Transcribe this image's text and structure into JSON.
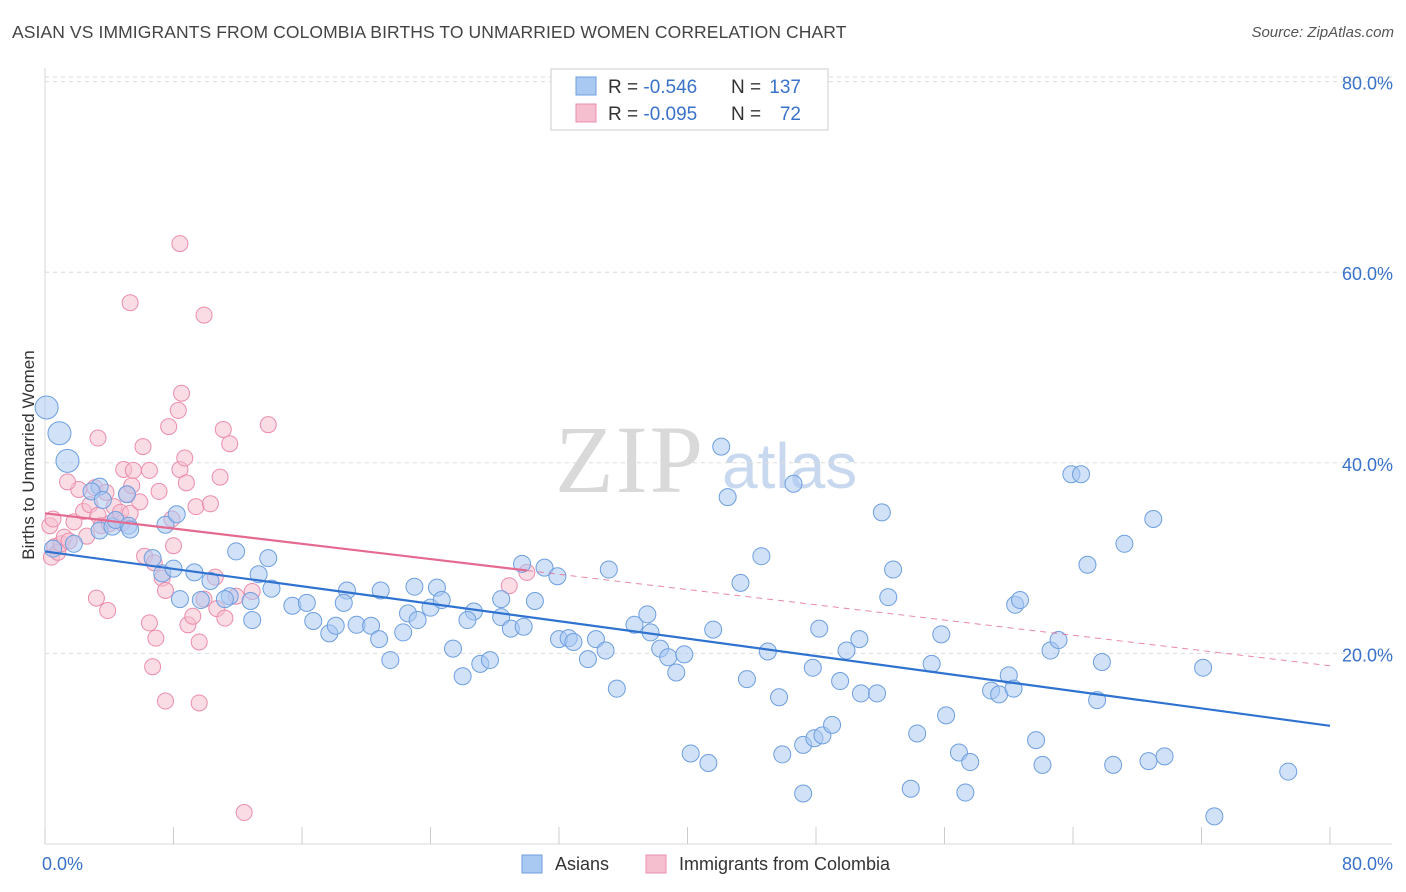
{
  "header": {
    "title": "ASIAN VS IMMIGRANTS FROM COLOMBIA BIRTHS TO UNMARRIED WOMEN CORRELATION CHART",
    "source": "Source: ZipAtlas.com"
  },
  "watermark": {
    "zip": "ZIP",
    "atlas": "atlas"
  },
  "colors": {
    "blue_fill": "#a9c8f2",
    "blue_stroke": "#6e9fdf",
    "blue_line": "#2f72cf",
    "pink_fill": "#f6bfd0",
    "pink_stroke": "#eb8dab",
    "pink_line": "#e46a90",
    "value_text": "#3a72c9",
    "label_text": "#333333",
    "grid": "#dcdcdc"
  },
  "legend_top": {
    "rows": [
      {
        "r_label": "R = ",
        "r_value": "-0.546",
        "n_label": "N = ",
        "n_value": "137",
        "color": "#a9c8f2"
      },
      {
        "r_label": "R = ",
        "r_value": "-0.095",
        "n_label": "N = ",
        "n_value": "72",
        "color": "#f6bfd0"
      }
    ]
  },
  "chart_data": {
    "type": "scatter",
    "title": "ASIAN VS IMMIGRANTS FROM COLOMBIA BIRTHS TO UNMARRIED WOMEN CORRELATION CHART",
    "xlabel": "",
    "ylabel": "Births to Unmarried Women",
    "xlim": [
      0,
      80
    ],
    "ylim": [
      0,
      82
    ],
    "x_tick_labels": [
      "0.0%",
      "80.0%"
    ],
    "y_ticks": [
      20,
      40,
      60,
      80
    ],
    "y_tick_labels": [
      "20.0%",
      "40.0%",
      "60.0%",
      "80.0%"
    ],
    "grid": true,
    "legend_position": "bottom-center",
    "series": [
      {
        "name": "Asians",
        "color": "#a9c8f2",
        "trend": {
          "x": [
            0,
            80
          ],
          "y": [
            30.7,
            12.4
          ]
        },
        "points": [
          [
            0.1,
            45.8
          ],
          [
            0.9,
            43.1
          ],
          [
            1.4,
            40.2
          ],
          [
            3.4,
            37.5
          ],
          [
            2.9,
            37.0
          ],
          [
            3.6,
            36.1
          ],
          [
            5.1,
            36.7
          ],
          [
            7.5,
            33.5
          ],
          [
            3.4,
            32.9
          ],
          [
            4.2,
            33.3
          ],
          [
            4.4,
            34.0
          ],
          [
            5.2,
            33.4
          ],
          [
            8.2,
            34.6
          ],
          [
            11.9,
            30.7
          ],
          [
            5.3,
            33.0
          ],
          [
            6.7,
            30.0
          ],
          [
            7.3,
            28.4
          ],
          [
            8.0,
            28.9
          ],
          [
            9.3,
            28.5
          ],
          [
            13.9,
            30.0
          ],
          [
            11.5,
            26.0
          ],
          [
            13.3,
            28.3
          ],
          [
            10.3,
            27.6
          ],
          [
            14.1,
            26.8
          ],
          [
            9.7,
            25.6
          ],
          [
            11.2,
            25.7
          ],
          [
            8.4,
            25.7
          ],
          [
            12.8,
            25.5
          ],
          [
            15.4,
            25.0
          ],
          [
            16.3,
            25.3
          ],
          [
            16.7,
            23.4
          ],
          [
            18.8,
            26.6
          ],
          [
            12.9,
            23.5
          ],
          [
            17.7,
            22.1
          ],
          [
            18.1,
            22.9
          ],
          [
            18.6,
            25.3
          ],
          [
            19.4,
            23.0
          ],
          [
            20.3,
            22.9
          ],
          [
            20.8,
            21.5
          ],
          [
            20.9,
            26.6
          ],
          [
            21.5,
            19.3
          ],
          [
            22.3,
            22.2
          ],
          [
            22.6,
            24.2
          ],
          [
            23.0,
            27.0
          ],
          [
            23.2,
            23.5
          ],
          [
            24.0,
            24.8
          ],
          [
            24.4,
            26.9
          ],
          [
            24.7,
            25.6
          ],
          [
            25.4,
            20.5
          ],
          [
            26.0,
            17.6
          ],
          [
            26.7,
            24.4
          ],
          [
            26.3,
            23.5
          ],
          [
            27.1,
            18.9
          ],
          [
            27.7,
            19.3
          ],
          [
            28.4,
            25.7
          ],
          [
            28.4,
            23.8
          ],
          [
            29.0,
            22.6
          ],
          [
            29.8,
            22.8
          ],
          [
            29.7,
            29.4
          ],
          [
            30.5,
            25.5
          ],
          [
            31.1,
            29.0
          ],
          [
            32.0,
            21.5
          ],
          [
            32.6,
            21.6
          ],
          [
            31.9,
            28.1
          ],
          [
            32.9,
            21.2
          ],
          [
            33.8,
            19.4
          ],
          [
            34.3,
            21.5
          ],
          [
            34.9,
            20.3
          ],
          [
            35.1,
            28.8
          ],
          [
            35.6,
            16.3
          ],
          [
            36.7,
            23.0
          ],
          [
            37.5,
            24.1
          ],
          [
            38.3,
            20.5
          ],
          [
            37.7,
            22.2
          ],
          [
            38.8,
            19.6
          ],
          [
            39.3,
            18.0
          ],
          [
            39.8,
            19.9
          ],
          [
            40.2,
            9.5
          ],
          [
            41.3,
            8.5
          ],
          [
            42.1,
            41.7
          ],
          [
            41.6,
            22.5
          ],
          [
            43.3,
            27.4
          ],
          [
            43.7,
            17.3
          ],
          [
            42.5,
            36.4
          ],
          [
            44.6,
            30.2
          ],
          [
            45.0,
            20.2
          ],
          [
            46.6,
            37.8
          ],
          [
            45.7,
            15.4
          ],
          [
            45.9,
            9.4
          ],
          [
            47.2,
            10.4
          ],
          [
            47.2,
            5.3
          ],
          [
            47.9,
            11.1
          ],
          [
            48.4,
            11.4
          ],
          [
            47.8,
            18.5
          ],
          [
            48.2,
            22.6
          ],
          [
            49.0,
            12.5
          ],
          [
            49.5,
            17.1
          ],
          [
            50.8,
            15.8
          ],
          [
            49.9,
            20.3
          ],
          [
            50.7,
            21.5
          ],
          [
            51.8,
            15.8
          ],
          [
            52.1,
            34.8
          ],
          [
            52.5,
            25.9
          ],
          [
            52.8,
            28.8
          ],
          [
            53.9,
            5.8
          ],
          [
            54.3,
            11.6
          ],
          [
            55.2,
            18.9
          ],
          [
            55.8,
            22.0
          ],
          [
            56.1,
            13.5
          ],
          [
            56.9,
            9.6
          ],
          [
            57.3,
            5.4
          ],
          [
            57.6,
            8.6
          ],
          [
            58.9,
            16.1
          ],
          [
            59.4,
            15.7
          ],
          [
            60.0,
            17.7
          ],
          [
            60.3,
            16.3
          ],
          [
            60.4,
            25.1
          ],
          [
            60.7,
            25.6
          ],
          [
            61.7,
            10.9
          ],
          [
            62.1,
            8.3
          ],
          [
            62.6,
            20.3
          ],
          [
            63.1,
            21.4
          ],
          [
            63.9,
            38.8
          ],
          [
            64.5,
            38.8
          ],
          [
            64.9,
            29.3
          ],
          [
            65.5,
            15.1
          ],
          [
            65.8,
            19.1
          ],
          [
            66.5,
            8.3
          ],
          [
            67.2,
            31.5
          ],
          [
            68.7,
            8.7
          ],
          [
            69.0,
            34.1
          ],
          [
            69.7,
            9.2
          ],
          [
            72.1,
            18.5
          ],
          [
            72.8,
            2.9
          ],
          [
            77.4,
            7.6
          ],
          [
            0.5,
            31.0
          ],
          [
            1.8,
            31.5
          ]
        ]
      },
      {
        "name": "Immigrants from Colombia",
        "color": "#f6bfd0",
        "trend": {
          "x": [
            0,
            30
          ],
          "y": [
            34.7,
            28.7
          ]
        },
        "extension": {
          "x": [
            30,
            80
          ],
          "y": [
            28.7,
            18.7
          ]
        },
        "points": [
          [
            0.3,
            33.4
          ],
          [
            0.4,
            30.1
          ],
          [
            0.6,
            31.2
          ],
          [
            0.8,
            30.6
          ],
          [
            1.0,
            31.5
          ],
          [
            0.5,
            34.1
          ],
          [
            1.2,
            32.2
          ],
          [
            1.5,
            31.8
          ],
          [
            1.8,
            33.8
          ],
          [
            2.1,
            37.2
          ],
          [
            1.4,
            38.0
          ],
          [
            2.4,
            34.9
          ],
          [
            2.8,
            35.6
          ],
          [
            3.1,
            37.4
          ],
          [
            3.3,
            34.5
          ],
          [
            2.6,
            32.3
          ],
          [
            3.5,
            33.4
          ],
          [
            3.8,
            36.9
          ],
          [
            4.0,
            33.6
          ],
          [
            3.2,
            25.8
          ],
          [
            3.9,
            24.5
          ],
          [
            3.3,
            42.6
          ],
          [
            4.9,
            39.3
          ],
          [
            4.3,
            35.4
          ],
          [
            5.1,
            36.7
          ],
          [
            4.7,
            34.8
          ],
          [
            4.8,
            33.7
          ],
          [
            5.4,
            37.6
          ],
          [
            5.3,
            34.7
          ],
          [
            5.9,
            35.9
          ],
          [
            5.5,
            39.2
          ],
          [
            6.1,
            41.7
          ],
          [
            6.5,
            39.2
          ],
          [
            6.2,
            30.2
          ],
          [
            6.8,
            29.5
          ],
          [
            6.5,
            23.2
          ],
          [
            6.7,
            18.6
          ],
          [
            6.9,
            21.6
          ],
          [
            7.3,
            27.9
          ],
          [
            7.5,
            26.6
          ],
          [
            7.1,
            37.0
          ],
          [
            7.7,
            43.8
          ],
          [
            8.3,
            45.5
          ],
          [
            8.0,
            31.3
          ],
          [
            7.9,
            34.1
          ],
          [
            8.4,
            39.3
          ],
          [
            8.7,
            40.5
          ],
          [
            8.8,
            37.9
          ],
          [
            8.5,
            47.3
          ],
          [
            8.9,
            23.0
          ],
          [
            9.2,
            23.9
          ],
          [
            9.6,
            21.2
          ],
          [
            7.5,
            15.0
          ],
          [
            9.6,
            14.8
          ],
          [
            9.4,
            35.4
          ],
          [
            9.9,
            25.7
          ],
          [
            10.3,
            35.7
          ],
          [
            10.7,
            24.7
          ],
          [
            10.6,
            28.0
          ],
          [
            10.9,
            38.5
          ],
          [
            11.1,
            43.5
          ],
          [
            11.5,
            42.0
          ],
          [
            11.2,
            23.7
          ],
          [
            11.9,
            26.0
          ],
          [
            12.4,
            3.3
          ],
          [
            12.9,
            26.5
          ],
          [
            13.9,
            44.0
          ],
          [
            8.4,
            63.0
          ],
          [
            9.9,
            55.5
          ],
          [
            5.3,
            56.8
          ],
          [
            28.9,
            27.1
          ],
          [
            30.0,
            28.5
          ]
        ]
      }
    ]
  }
}
